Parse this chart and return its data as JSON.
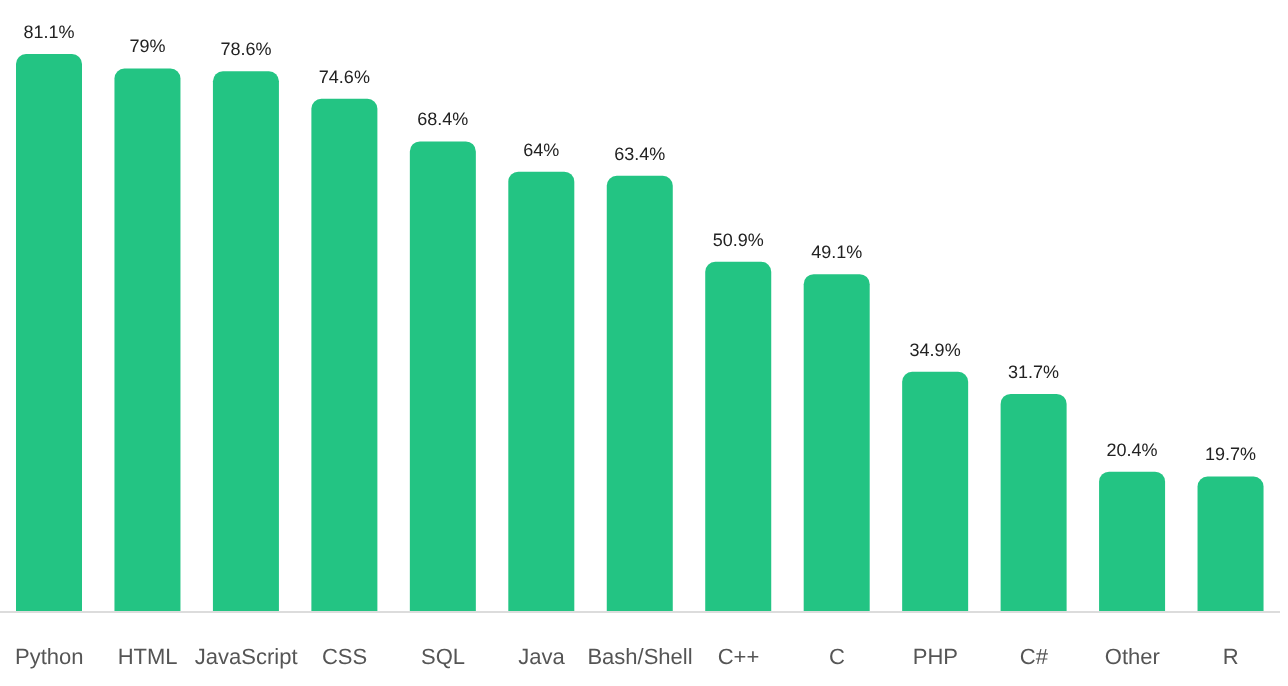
{
  "chart_data": {
    "type": "bar",
    "categories": [
      "Python",
      "HTML",
      "JavaScript",
      "CSS",
      "SQL",
      "Java",
      "Bash/Shell",
      "C++",
      "C",
      "PHP",
      "C#",
      "Other",
      "R"
    ],
    "values": [
      81.1,
      79,
      78.6,
      74.6,
      68.4,
      64,
      63.4,
      50.9,
      49.1,
      34.9,
      31.7,
      20.4,
      19.7
    ],
    "value_labels": [
      "81.1%",
      "79%",
      "78.6%",
      "74.6%",
      "68.4%",
      "64%",
      "63.4%",
      "50.9%",
      "49.1%",
      "34.9%",
      "31.7%",
      "20.4%",
      "19.7%"
    ],
    "color": "#23c483"
  }
}
